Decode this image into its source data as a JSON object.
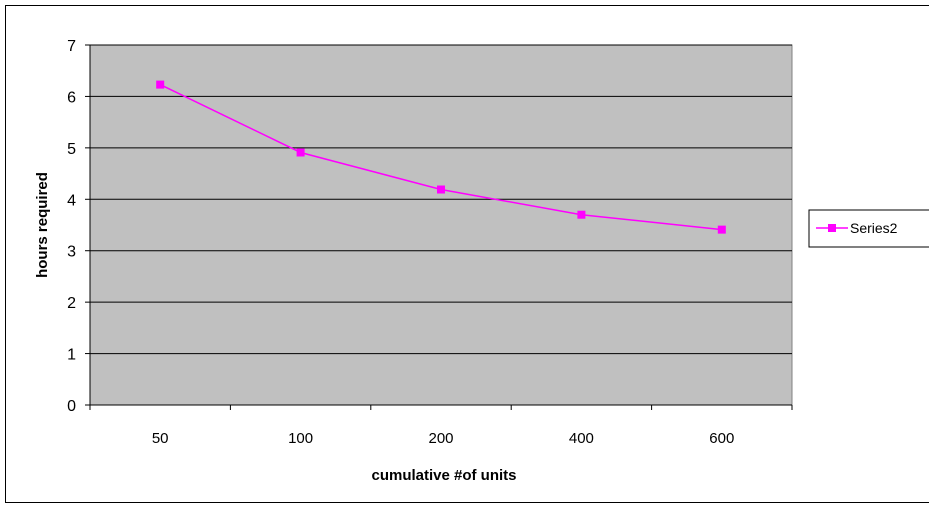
{
  "chart_data": {
    "type": "line",
    "title": "",
    "xlabel": "cumulative #of units",
    "ylabel": "hours required",
    "categories": [
      "50",
      "100",
      "200",
      "400",
      "600"
    ],
    "ylim": [
      0,
      7
    ],
    "yticks": [
      "0",
      "1",
      "2",
      "3",
      "4",
      "5",
      "6",
      "7"
    ],
    "grid": true,
    "legend_position": "right",
    "series": [
      {
        "name": "Series2",
        "values": [
          6.23,
          4.91,
          4.19,
          3.7,
          3.41
        ],
        "color": "#ff00ff"
      }
    ],
    "plot_background": "#c0c0c0"
  }
}
